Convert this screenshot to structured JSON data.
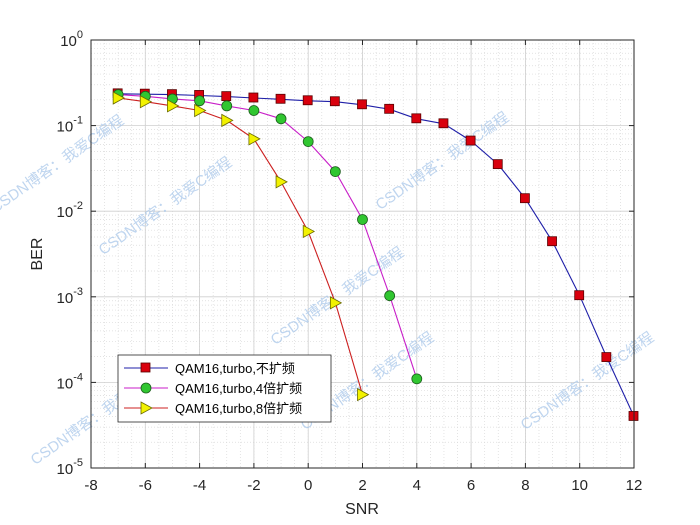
{
  "chart_data": {
    "type": "line",
    "xlabel": "SNR",
    "ylabel": "BER",
    "xlim": [
      -8,
      12
    ],
    "ylim": [
      1e-05,
      1
    ],
    "yscale": "log",
    "xticks": [
      "-8",
      "-6",
      "-4",
      "-2",
      "0",
      "2",
      "4",
      "6",
      "8",
      "10",
      "12"
    ],
    "yticks": [
      {
        "base": "10",
        "exp": "0"
      },
      {
        "base": "10",
        "exp": "-1"
      },
      {
        "base": "10",
        "exp": "-2"
      },
      {
        "base": "10",
        "exp": "-3"
      },
      {
        "base": "10",
        "exp": "-4"
      },
      {
        "base": "10",
        "exp": "-5"
      }
    ],
    "grid": true,
    "legend_position": "bottom-left",
    "series": [
      {
        "name": "QAM16,turbo,不扩频",
        "line_color": "#1f1fa8",
        "marker": "square",
        "marker_color": "#d9000d",
        "x": [
          -7,
          -6,
          -5,
          -4,
          -3,
          -2,
          -1,
          0,
          1,
          2,
          3,
          4,
          5,
          6,
          7,
          8,
          9,
          10,
          11,
          12
        ],
        "y": [
          0.235,
          0.233,
          0.23,
          0.225,
          0.218,
          0.21,
          0.203,
          0.195,
          0.19,
          0.175,
          0.155,
          0.12,
          0.105,
          0.066,
          0.035,
          0.014,
          0.0044,
          0.00103,
          0.000195,
          4e-05
        ]
      },
      {
        "name": "QAM16,turbo,4倍扩频",
        "line_color": "#c81ec8",
        "marker": "circle",
        "marker_color": "#30c630",
        "x": [
          -7,
          -6,
          -5,
          -4,
          -3,
          -2,
          -1,
          0,
          1,
          2,
          3,
          4
        ],
        "y": [
          0.23,
          0.22,
          0.205,
          0.195,
          0.17,
          0.15,
          0.12,
          0.065,
          0.029,
          0.008,
          0.00103,
          0.00011
        ]
      },
      {
        "name": "QAM16,turbo,8倍扩频",
        "line_color": "#cc2020",
        "marker": "triangle-right",
        "marker_color": "#f2f200",
        "x": [
          -7,
          -6,
          -5,
          -4,
          -3,
          -2,
          -1,
          0,
          1,
          2
        ],
        "y": [
          0.21,
          0.19,
          0.17,
          0.15,
          0.115,
          0.07,
          0.022,
          0.0058,
          0.00085,
          7.2e-05
        ]
      }
    ]
  },
  "watermarks": [
    "CSDN博客：我爱C编程",
    "CSDN博客：我爱C编程",
    "CSDN博客：我爱C编程",
    "CSDN博客：我爱C编程",
    "CSDN博客：我爱C编程",
    "CSDN博客：我爱C编程",
    "CSDN博客：我爱C编程"
  ]
}
